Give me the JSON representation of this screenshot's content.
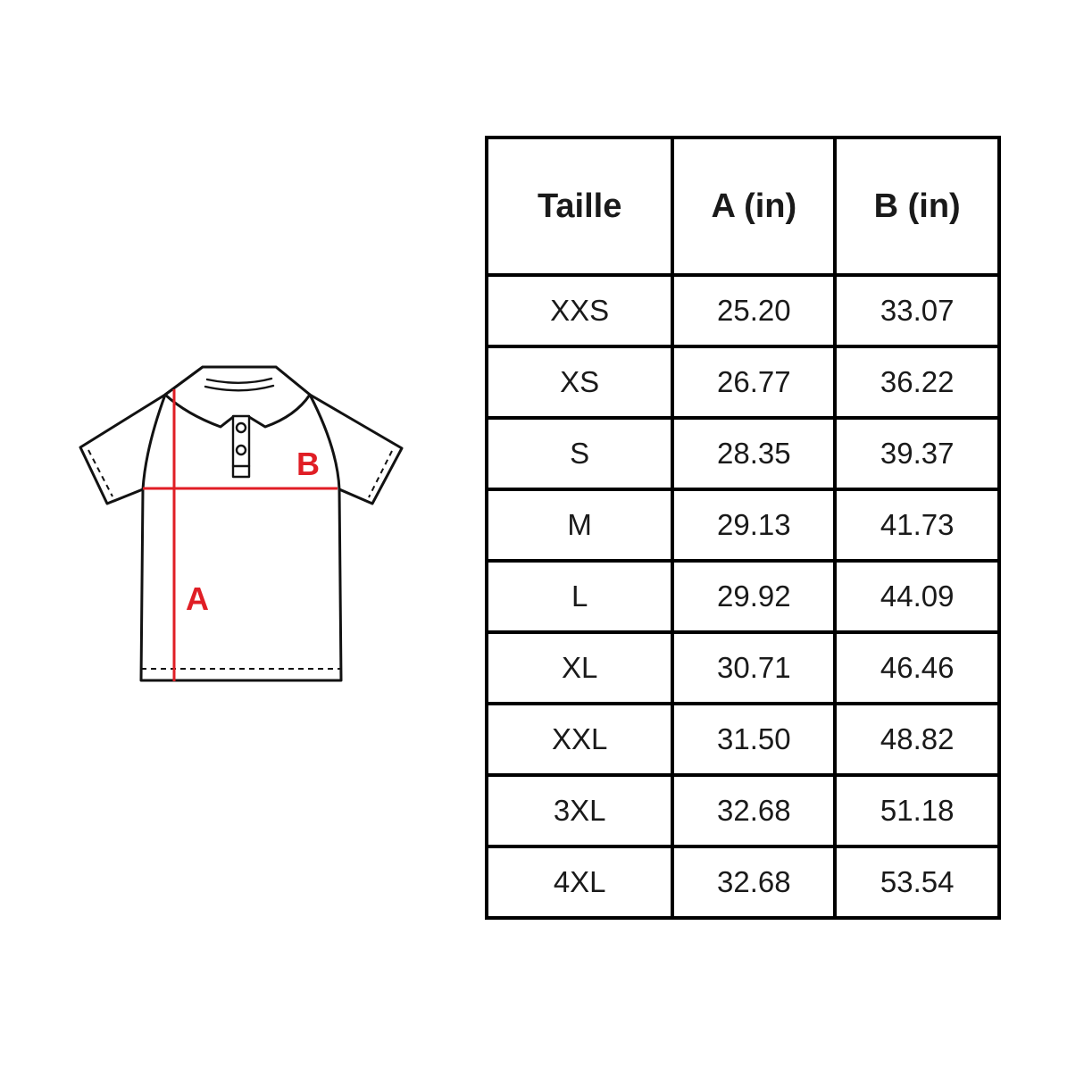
{
  "page": {
    "background": "#ffffff"
  },
  "diagram": {
    "label_a": "A",
    "label_b": "B",
    "accent_color": "#e01e25",
    "outline_color": "#121212"
  },
  "size_chart": {
    "columns": [
      "Taille",
      "A (in)",
      "B (in)"
    ],
    "rows": [
      [
        "XXS",
        "25.20",
        "33.07"
      ],
      [
        "XS",
        "26.77",
        "36.22"
      ],
      [
        "S",
        "28.35",
        "39.37"
      ],
      [
        "M",
        "29.13",
        "41.73"
      ],
      [
        "L",
        "29.92",
        "44.09"
      ],
      [
        "XL",
        "30.71",
        "46.46"
      ],
      [
        "XXL",
        "31.50",
        "48.82"
      ],
      [
        "3XL",
        "32.68",
        "51.18"
      ],
      [
        "4XL",
        "32.68",
        "53.54"
      ]
    ]
  }
}
